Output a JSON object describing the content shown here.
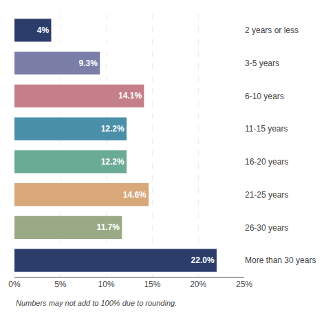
{
  "chart_data": {
    "type": "bar",
    "orientation": "horizontal",
    "categories": [
      "2 years or less",
      "3-5 years",
      "6-10 years",
      "11-15 years",
      "16-20 years",
      "21-25 years",
      "26-30 years",
      "More than 30 years"
    ],
    "values": [
      4.0,
      9.3,
      14.1,
      12.2,
      12.2,
      14.6,
      11.7,
      22.0
    ],
    "value_labels": [
      "4%",
      "9.3%",
      "14.1%",
      "12.2%",
      "12.2%",
      "14.6%",
      "11.7%",
      "22.0%"
    ],
    "data_labels": true,
    "colors": [
      "#2d3d6b",
      "#7b7fa8",
      "#c47f8a",
      "#4a8fa8",
      "#6aab96",
      "#d9a87a",
      "#9aaa86",
      "#2d3d6b"
    ],
    "xlim": [
      0,
      25
    ],
    "xticks": [
      {
        "value": 0,
        "label": "0%"
      },
      {
        "value": 5,
        "label": "5%"
      },
      {
        "value": 10,
        "label": "10%"
      },
      {
        "value": 15,
        "label": "15%"
      },
      {
        "value": 20,
        "label": "20%"
      },
      {
        "value": 25,
        "label": "25%"
      }
    ],
    "grid": true,
    "annotations": [
      "Numbers may not add to 100% due to rounding."
    ]
  }
}
